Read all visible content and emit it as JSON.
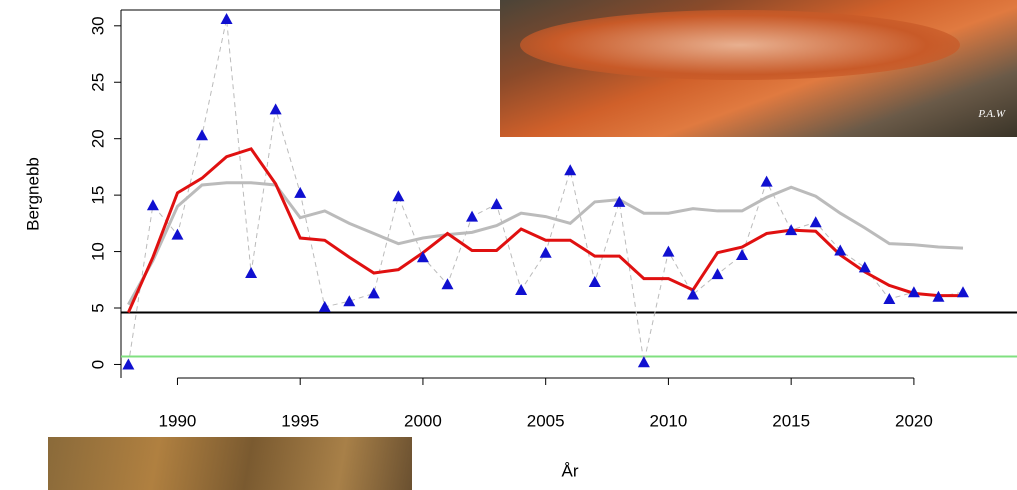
{
  "chart_data": {
    "type": "line",
    "y_label": "Bergnebb",
    "x_label": "År",
    "photo_credit": "P.A.W",
    "x": [
      1988,
      1989,
      1990,
      1991,
      1992,
      1993,
      1994,
      1995,
      1996,
      1997,
      1998,
      1999,
      2000,
      2001,
      2002,
      2003,
      2004,
      2005,
      2006,
      2007,
      2008,
      2009,
      2010,
      2011,
      2012,
      2013,
      2014,
      2015,
      2016,
      2017,
      2018,
      2019,
      2020,
      2021,
      2022
    ],
    "series": [
      {
        "color": "#bbbbbb",
        "width": 3,
        "values": [
          5.3,
          9.2,
          14,
          15.9,
          16.1,
          16.1,
          15.9,
          13,
          13.6,
          12.5,
          11.6,
          10.7,
          11.2,
          11.5,
          11.7,
          12.3,
          13.4,
          13.1,
          12.5,
          14.4,
          14.6,
          13.4,
          13.4,
          13.8,
          13.6,
          13.6,
          14.8,
          15.7,
          14.9,
          13.4,
          12.1,
          10.7,
          10.6,
          10.4,
          10.3
        ]
      },
      {
        "color": "#1010d0",
        "line_color": "#bbbbbb",
        "dashed": true,
        "width": 1,
        "marker": "triangle",
        "values": [
          0,
          14.1,
          11.5,
          20.3,
          30.6,
          8.1,
          22.6,
          15.2,
          5.1,
          5.6,
          6.3,
          14.9,
          9.5,
          7.1,
          13.1,
          14.2,
          6.6,
          9.9,
          17.2,
          7.3,
          14.4,
          0.2,
          10,
          6.2,
          8,
          9.7,
          16.2,
          11.9,
          12.6,
          10.1,
          8.6,
          5.8,
          6.4,
          6,
          6.4
        ]
      },
      {
        "color": "#e01010",
        "width": 3,
        "values": [
          4.6,
          9.5,
          15.2,
          16.5,
          18.4,
          19.1,
          16,
          11.2,
          11,
          9.5,
          8.1,
          8.4,
          9.9,
          11.6,
          10.1,
          10.1,
          12,
          11,
          11,
          9.6,
          9.6,
          7.6,
          7.6,
          6.6,
          9.9,
          10.4,
          11.6,
          11.9,
          11.8,
          9.7,
          8.2,
          7,
          6.3,
          6.1,
          6.1
        ]
      }
    ],
    "hlines": [
      {
        "value": 4.6,
        "color": "#000000"
      },
      {
        "value": 0.7,
        "color": "#80e080"
      }
    ],
    "xlim": [
      1987.7,
      2024.2
    ],
    "ylim": [
      -1.2,
      31.4
    ],
    "xticks": [
      1990,
      1995,
      2000,
      2005,
      2010,
      2015,
      2020
    ],
    "yticks": [
      0,
      5,
      10,
      15,
      20,
      25,
      30
    ]
  }
}
